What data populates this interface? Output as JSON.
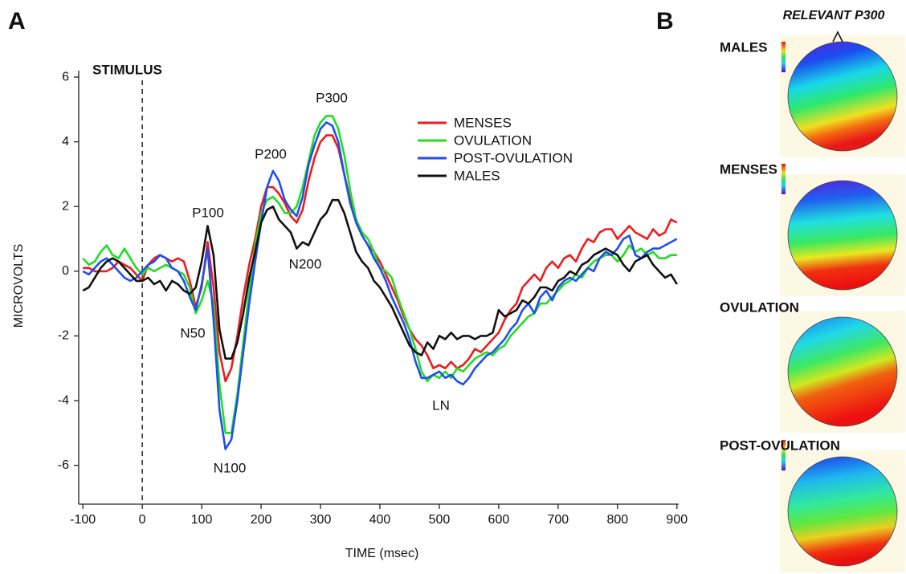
{
  "chart_data": {
    "type": "line",
    "xlabel": "TIME (msec)",
    "ylabel": "MICROVOLTS",
    "x": [
      -100,
      -90,
      -80,
      -70,
      -60,
      -50,
      -40,
      -30,
      -20,
      -10,
      0,
      10,
      20,
      30,
      40,
      50,
      60,
      70,
      80,
      90,
      100,
      110,
      120,
      130,
      140,
      150,
      160,
      170,
      180,
      190,
      200,
      210,
      220,
      230,
      240,
      250,
      260,
      270,
      280,
      290,
      300,
      310,
      320,
      330,
      340,
      350,
      360,
      370,
      380,
      390,
      400,
      410,
      420,
      430,
      440,
      450,
      460,
      470,
      480,
      490,
      500,
      510,
      520,
      530,
      540,
      550,
      560,
      570,
      580,
      590,
      600,
      610,
      620,
      630,
      640,
      650,
      660,
      670,
      680,
      690,
      700,
      710,
      720,
      730,
      740,
      750,
      760,
      770,
      780,
      790,
      800,
      810,
      820,
      830,
      840,
      850,
      860,
      870,
      880,
      890,
      900
    ],
    "series": [
      {
        "name": "MENSES",
        "color": "#ee1c1c",
        "values": [
          0.1,
          0.1,
          0.0,
          0.0,
          0.0,
          0.1,
          0.3,
          0.2,
          0.1,
          -0.1,
          -0.3,
          0.2,
          0.4,
          0.5,
          0.4,
          0.3,
          0.4,
          0.3,
          -0.3,
          -1.1,
          -0.5,
          0.9,
          -0.5,
          -2.5,
          -3.4,
          -3.0,
          -2.0,
          -0.8,
          0.2,
          1.0,
          2.0,
          2.6,
          2.6,
          2.4,
          2.1,
          1.7,
          1.5,
          1.9,
          2.8,
          3.5,
          4.0,
          4.2,
          4.2,
          3.8,
          3.0,
          2.2,
          1.6,
          1.1,
          0.8,
          0.6,
          0.3,
          -0.1,
          -0.5,
          -0.9,
          -1.4,
          -1.8,
          -2.1,
          -2.3,
          -2.6,
          -3.0,
          -2.9,
          -3.0,
          -2.8,
          -3.0,
          -2.9,
          -2.7,
          -2.4,
          -2.5,
          -2.3,
          -2.1,
          -1.9,
          -1.5,
          -1.2,
          -1.0,
          -0.5,
          -0.3,
          -0.1,
          -0.3,
          0.1,
          0.3,
          0.1,
          0.4,
          0.5,
          0.3,
          0.7,
          1.0,
          0.9,
          1.2,
          1.3,
          1.3,
          1.0,
          1.2,
          1.4,
          1.2,
          1.1,
          1.0,
          1.3,
          1.1,
          1.2,
          1.6,
          1.5
        ]
      },
      {
        "name": "OVULATION",
        "color": "#22dd22",
        "values": [
          0.4,
          0.2,
          0.3,
          0.6,
          0.8,
          0.5,
          0.4,
          0.7,
          0.4,
          0.1,
          -0.1,
          0.1,
          0.0,
          0.1,
          0.2,
          0.1,
          0.0,
          -0.1,
          -0.5,
          -1.3,
          -0.9,
          -0.3,
          -1.0,
          -3.5,
          -5.0,
          -5.0,
          -3.8,
          -2.2,
          -0.6,
          0.8,
          1.8,
          2.2,
          2.3,
          2.1,
          1.8,
          1.8,
          2.0,
          2.6,
          3.4,
          4.2,
          4.6,
          4.8,
          4.8,
          4.4,
          3.6,
          2.5,
          1.6,
          1.2,
          1.0,
          0.6,
          0.1,
          0.0,
          -0.2,
          -0.8,
          -1.3,
          -1.8,
          -2.4,
          -3.1,
          -3.4,
          -3.2,
          -3.3,
          -3.1,
          -3.3,
          -3.0,
          -3.1,
          -2.9,
          -2.7,
          -2.6,
          -2.5,
          -2.6,
          -2.4,
          -2.3,
          -2.0,
          -1.8,
          -1.6,
          -1.4,
          -1.3,
          -1.0,
          -1.0,
          -0.8,
          -0.6,
          -0.4,
          -0.3,
          -0.1,
          -0.2,
          0.1,
          0.3,
          0.4,
          0.5,
          0.5,
          0.3,
          0.5,
          0.8,
          0.6,
          0.7,
          0.5,
          0.6,
          0.4,
          0.4,
          0.5,
          0.5
        ]
      },
      {
        "name": "POST-OVULATION",
        "color": "#1f4fee",
        "values": [
          0.0,
          -0.1,
          0.1,
          0.3,
          0.4,
          0.2,
          0.0,
          -0.2,
          -0.3,
          -0.2,
          0.0,
          0.2,
          0.3,
          0.5,
          0.4,
          0.1,
          0.0,
          -0.3,
          -0.8,
          -1.2,
          -0.4,
          0.7,
          -1.5,
          -4.3,
          -5.5,
          -5.2,
          -4.0,
          -2.5,
          -1.0,
          0.3,
          1.5,
          2.6,
          3.1,
          2.8,
          2.2,
          1.9,
          1.7,
          2.3,
          3.3,
          3.9,
          4.4,
          4.6,
          4.5,
          4.0,
          3.0,
          2.1,
          1.5,
          1.1,
          0.8,
          0.4,
          0.1,
          -0.3,
          -0.8,
          -1.2,
          -1.6,
          -2.1,
          -2.8,
          -3.3,
          -3.3,
          -3.2,
          -3.1,
          -3.3,
          -3.2,
          -3.4,
          -3.5,
          -3.3,
          -3.0,
          -2.8,
          -2.6,
          -2.5,
          -2.3,
          -2.1,
          -1.8,
          -1.6,
          -1.2,
          -1.0,
          -1.3,
          -0.8,
          -0.6,
          -0.9,
          -0.5,
          -0.3,
          -0.2,
          -0.3,
          -0.1,
          0.1,
          0.0,
          0.4,
          0.6,
          0.5,
          0.7,
          1.0,
          1.1,
          0.5,
          0.4,
          0.6,
          0.7,
          0.7,
          0.8,
          0.9,
          1.0
        ]
      },
      {
        "name": "MALES",
        "color": "#111111",
        "values": [
          -0.6,
          -0.5,
          -0.2,
          0.1,
          0.3,
          0.4,
          0.3,
          0.1,
          -0.1,
          -0.3,
          -0.3,
          -0.2,
          -0.4,
          -0.3,
          -0.6,
          -0.3,
          -0.4,
          -0.6,
          -0.7,
          -0.5,
          0.3,
          1.4,
          0.5,
          -1.8,
          -2.7,
          -2.7,
          -2.2,
          -1.3,
          -0.2,
          0.6,
          1.5,
          1.9,
          2.0,
          1.6,
          1.4,
          1.2,
          0.7,
          0.9,
          0.8,
          1.2,
          1.6,
          1.8,
          2.2,
          2.2,
          1.8,
          1.2,
          0.6,
          0.3,
          0.1,
          -0.3,
          -0.5,
          -0.8,
          -1.1,
          -1.5,
          -1.9,
          -2.3,
          -2.5,
          -2.6,
          -2.2,
          -2.4,
          -2.0,
          -2.1,
          -1.9,
          -2.1,
          -2.0,
          -2.0,
          -2.1,
          -2.0,
          -2.0,
          -1.9,
          -1.2,
          -1.4,
          -1.3,
          -1.2,
          -0.9,
          -1.0,
          -0.8,
          -0.5,
          -0.5,
          -0.6,
          -0.3,
          -0.2,
          0.0,
          -0.1,
          0.2,
          0.3,
          0.5,
          0.6,
          0.7,
          0.6,
          0.5,
          0.2,
          0.0,
          0.3,
          0.4,
          0.5,
          0.2,
          0.0,
          -0.2,
          -0.1,
          -0.4
        ]
      }
    ],
    "xlim": [
      -107,
      903
    ],
    "ylim": [
      -7.2,
      6.2
    ],
    "xticks": [
      -100,
      0,
      100,
      200,
      300,
      400,
      500,
      600,
      700,
      800,
      900
    ],
    "yticks": [
      -6,
      -4,
      -2,
      0,
      2,
      4,
      6
    ],
    "grid": false,
    "legend": "upper right",
    "annotations": [
      "STIMULUS",
      "P100",
      "N50",
      "N100",
      "P200",
      "N200",
      "P300",
      "LN"
    ]
  },
  "panel_labels": [
    "A",
    "B"
  ],
  "topomaps": {
    "title": "RELEVANT P300",
    "maps": [
      "MALES",
      "MENSES",
      "OVULATION",
      "POST-OVULATION"
    ]
  }
}
